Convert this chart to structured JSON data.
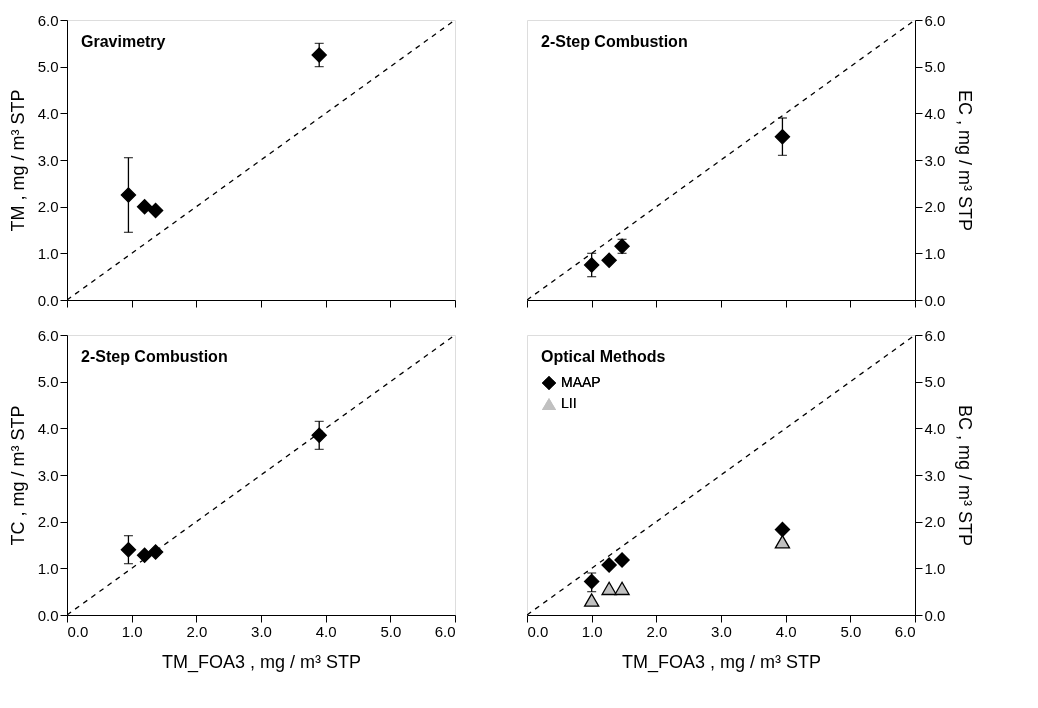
{
  "chart_data": [
    {
      "type": "scatter",
      "title": "Gravimetry",
      "ylabel": "TM ,  mg / m³ STP",
      "xlim": [
        0,
        6
      ],
      "ylim": [
        0,
        6
      ],
      "xticks": [
        {
          "value": 0,
          "label": null
        },
        {
          "value": 1,
          "label": null
        },
        {
          "value": 2,
          "label": null
        },
        {
          "value": 3,
          "label": null
        },
        {
          "value": 4,
          "label": null
        },
        {
          "value": 5,
          "label": null
        },
        {
          "value": 6,
          "label": null
        }
      ],
      "yticks": [
        {
          "value": 0,
          "label": "0.0"
        },
        {
          "value": 1,
          "label": "1.0"
        },
        {
          "value": 2,
          "label": "2.0"
        },
        {
          "value": 3,
          "label": "3.0"
        },
        {
          "value": 4,
          "label": "4.0"
        },
        {
          "value": 5,
          "label": "5.0"
        },
        {
          "value": 6,
          "label": "6.0"
        }
      ],
      "tick_labels": "y",
      "grid": false,
      "legend": false,
      "series": [
        {
          "type": "line",
          "color": "#000000",
          "line_style": "dashed",
          "marker": "none",
          "x": [
            0,
            6
          ],
          "values": [
            0,
            6
          ]
        },
        {
          "color": "#000000",
          "marker": "diamond",
          "x": [
            0.95,
            1.2,
            1.37,
            3.9
          ],
          "values": [
            2.25,
            2.0,
            1.92,
            5.25
          ],
          "errors": [
            [
              1.45,
              3.05
            ],
            null,
            null,
            [
              5.0,
              5.5
            ]
          ]
        }
      ]
    },
    {
      "type": "scatter",
      "title": "2-Step Combustion",
      "ylabel": "EC ,  mg / m³ STP",
      "xlim": [
        0,
        6
      ],
      "ylim": [
        0,
        6
      ],
      "xticks": [
        {
          "value": 0,
          "label": null
        },
        {
          "value": 1,
          "label": null
        },
        {
          "value": 2,
          "label": null
        },
        {
          "value": 3,
          "label": null
        },
        {
          "value": 4,
          "label": null
        },
        {
          "value": 5,
          "label": null
        },
        {
          "value": 6,
          "label": null
        }
      ],
      "yticks": [
        {
          "value": 0,
          "label": "0.0"
        },
        {
          "value": 1,
          "label": "1.0"
        },
        {
          "value": 2,
          "label": "2.0"
        },
        {
          "value": 3,
          "label": "3.0"
        },
        {
          "value": 4,
          "label": "4.0"
        },
        {
          "value": 5,
          "label": "5.0"
        },
        {
          "value": 6,
          "label": "6.0"
        }
      ],
      "tick_labels": "y",
      "grid": false,
      "legend": false,
      "series": [
        {
          "type": "line",
          "color": "#000000",
          "line_style": "dashed",
          "marker": "none",
          "x": [
            0,
            6
          ],
          "values": [
            0,
            6
          ]
        },
        {
          "color": "#000000",
          "marker": "diamond",
          "x": [
            1.0,
            1.27,
            1.47,
            3.95
          ],
          "values": [
            0.75,
            0.85,
            1.15,
            3.5
          ],
          "errors": [
            [
              0.5,
              1.0
            ],
            null,
            [
              1.0,
              1.3
            ],
            [
              3.1,
              3.9
            ]
          ]
        }
      ]
    },
    {
      "type": "scatter",
      "title": "2-Step Combustion",
      "xlabel": "TM_FOA3 ,  mg / m³ STP",
      "ylabel": "TC ,  mg / m³ STP",
      "xlim": [
        0,
        6
      ],
      "ylim": [
        0,
        6
      ],
      "xticks": [
        {
          "value": 0,
          "label": "0.0"
        },
        {
          "value": 1,
          "label": "1.0"
        },
        {
          "value": 2,
          "label": "2.0"
        },
        {
          "value": 3,
          "label": "3.0"
        },
        {
          "value": 4,
          "label": "4.0"
        },
        {
          "value": 5,
          "label": "5.0"
        },
        {
          "value": 6,
          "label": "6.0"
        }
      ],
      "yticks": [
        {
          "value": 0,
          "label": "0.0"
        },
        {
          "value": 1,
          "label": "1.0"
        },
        {
          "value": 2,
          "label": "2.0"
        },
        {
          "value": 3,
          "label": "3.0"
        },
        {
          "value": 4,
          "label": "4.0"
        },
        {
          "value": 5,
          "label": "5.0"
        },
        {
          "value": 6,
          "label": "6.0"
        }
      ],
      "grid": false,
      "legend": false,
      "series": [
        {
          "type": "line",
          "color": "#000000",
          "line_style": "dashed",
          "marker": "none",
          "x": [
            0,
            6
          ],
          "values": [
            0,
            6
          ]
        },
        {
          "color": "#000000",
          "marker": "diamond",
          "x": [
            0.95,
            1.2,
            1.37,
            3.9
          ],
          "values": [
            1.4,
            1.28,
            1.35,
            3.85
          ],
          "errors": [
            [
              1.1,
              1.7
            ],
            null,
            null,
            [
              3.55,
              4.15
            ]
          ]
        }
      ]
    },
    {
      "type": "scatter",
      "title": "Optical Methods",
      "xlabel": "TM_FOA3 ,  mg / m³ STP",
      "ylabel": "BC ,  mg / m³ STP",
      "xlim": [
        0,
        6
      ],
      "ylim": [
        0,
        6
      ],
      "xticks": [
        {
          "value": 0,
          "label": "0.0"
        },
        {
          "value": 1,
          "label": "1.0"
        },
        {
          "value": 2,
          "label": "2.0"
        },
        {
          "value": 3,
          "label": "3.0"
        },
        {
          "value": 4,
          "label": "4.0"
        },
        {
          "value": 5,
          "label": "5.0"
        },
        {
          "value": 6,
          "label": "6.0"
        }
      ],
      "yticks": [
        {
          "value": 0,
          "label": "0.0"
        },
        {
          "value": 1,
          "label": "1.0"
        },
        {
          "value": 2,
          "label": "2.0"
        },
        {
          "value": 3,
          "label": "3.0"
        },
        {
          "value": 4,
          "label": "4.0"
        },
        {
          "value": 5,
          "label": "5.0"
        },
        {
          "value": 6,
          "label": "6.0"
        }
      ],
      "grid": false,
      "legend": "top left",
      "series": [
        {
          "type": "line",
          "color": "#000000",
          "line_style": "dashed",
          "marker": "none",
          "x": [
            0,
            6
          ],
          "values": [
            0,
            6
          ]
        },
        {
          "name": "MAAP",
          "color": "#000000",
          "marker": "diamond",
          "x": [
            1.0,
            1.27,
            1.47,
            3.95
          ],
          "values": [
            0.72,
            1.07,
            1.18,
            1.83
          ],
          "errors": [
            [
              0.5,
              0.9
            ],
            null,
            null,
            null
          ]
        },
        {
          "name": "LII",
          "color": "#c0c0c0",
          "marker": "triangle",
          "x": [
            1.0,
            1.27,
            1.47,
            3.95
          ],
          "values": [
            0.32,
            0.57,
            0.57,
            1.57
          ]
        }
      ]
    }
  ]
}
